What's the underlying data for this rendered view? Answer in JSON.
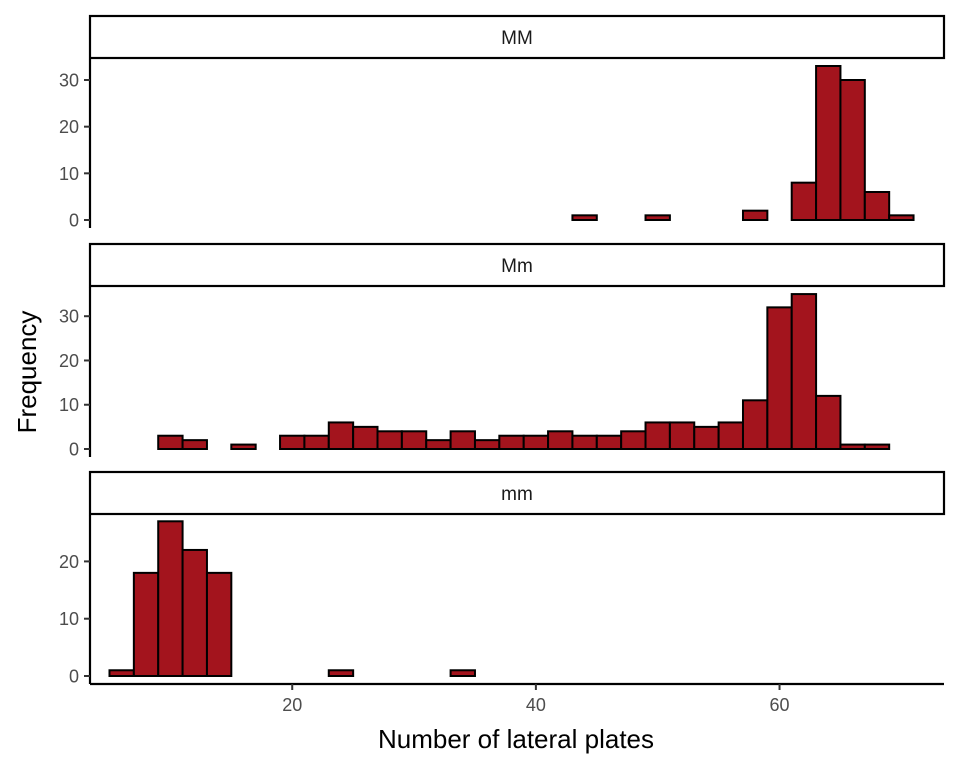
{
  "chart_data": {
    "type": "bar",
    "xlabel": "Number of lateral plates",
    "ylabel": "Frequency",
    "xlim": [
      3.4,
      73.5
    ],
    "x_ticks": [
      20,
      40,
      60
    ],
    "bin_width": 2,
    "bin_centers": [
      6,
      8,
      10,
      12,
      14,
      16,
      18,
      20,
      22,
      24,
      26,
      28,
      30,
      32,
      34,
      36,
      38,
      40,
      42,
      44,
      46,
      48,
      50,
      52,
      54,
      56,
      58,
      60,
      62,
      64,
      66,
      68,
      70
    ],
    "series": [
      {
        "name": "MM",
        "ylim": [
          0,
          34.5
        ],
        "y_ticks": [
          0,
          10,
          20,
          30
        ],
        "values": [
          0,
          0,
          0,
          0,
          0,
          0,
          0,
          0,
          0,
          0,
          0,
          0,
          0,
          0,
          0,
          0,
          0,
          0,
          0,
          1,
          0,
          0,
          1,
          0,
          0,
          0,
          2,
          0,
          8,
          33,
          30,
          6,
          1
        ]
      },
      {
        "name": "Mm",
        "ylim": [
          0,
          36.6
        ],
        "y_ticks": [
          0,
          10,
          20,
          30
        ],
        "values": [
          0,
          0,
          3,
          2,
          0,
          1,
          0,
          3,
          3,
          6,
          5,
          4,
          4,
          2,
          4,
          2,
          3,
          3,
          4,
          3,
          3,
          4,
          6,
          6,
          5,
          6,
          11,
          32,
          35,
          12,
          1,
          1,
          0
        ]
      },
      {
        "name": "mm",
        "ylim": [
          0,
          28.1
        ],
        "y_ticks": [
          0,
          10,
          20
        ],
        "values": [
          1,
          18,
          27,
          22,
          18,
          0,
          0,
          0,
          0,
          1,
          0,
          0,
          0,
          0,
          1,
          0,
          0,
          0,
          0,
          0,
          0,
          0,
          0,
          0,
          0,
          0,
          0,
          0,
          0,
          0,
          0,
          0,
          0
        ]
      }
    ],
    "bar_color": "#A3141D",
    "bar_outline": "#000000",
    "grid": false,
    "legend": "none"
  }
}
